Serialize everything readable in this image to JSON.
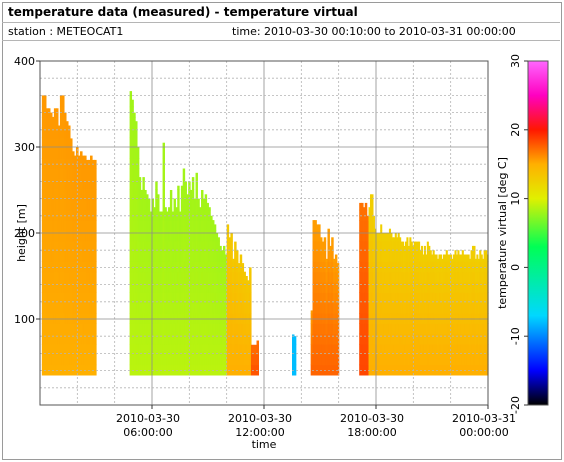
{
  "header": {
    "title": "temperature data (measured) - temperature virtual",
    "station_text": "station : METEOCAT1",
    "time_text": "time: 2010-03-30 00:10:00 to 2010-03-31 00:00:00"
  },
  "chart_data": {
    "type": "heatmap",
    "xlabel": "time",
    "ylabel": "height [m]",
    "colorbar_label": "temperature virtual [deg C]",
    "x_range_hours": [
      0,
      24
    ],
    "ylim": [
      0,
      400
    ],
    "x_ticks": [
      {
        "hour": 6,
        "label1": "2010-03-30",
        "label2": "06:00:00"
      },
      {
        "hour": 12,
        "label1": "2010-03-30",
        "label2": "12:00:00"
      },
      {
        "hour": 18,
        "label1": "2010-03-30",
        "label2": "18:00:00"
      },
      {
        "hour": 24,
        "label1": "2010-03-31",
        "label2": "00:00:00"
      }
    ],
    "y_ticks": [
      100,
      200,
      300,
      400
    ],
    "colorbar": {
      "range": [
        -20,
        30
      ],
      "ticks": [
        -20,
        -10,
        0,
        10,
        20,
        30
      ],
      "stops": [
        {
          "v": -20,
          "c": "#000000"
        },
        {
          "v": -15,
          "c": "#0000ff"
        },
        {
          "v": -7,
          "c": "#00d8ff"
        },
        {
          "v": 3,
          "c": "#00ff55"
        },
        {
          "v": 10,
          "c": "#e0f000"
        },
        {
          "v": 15,
          "c": "#ffb000"
        },
        {
          "v": 20,
          "c": "#ff1800"
        },
        {
          "v": 25,
          "c": "#ff00c0"
        },
        {
          "v": 30,
          "c": "#ff66ff"
        }
      ]
    },
    "grid": true,
    "bottom_height_m": 35,
    "segments": [
      {
        "t0": 0.1,
        "t1": 3.0,
        "temp_bottom": 15.0,
        "temp_top": 15.8,
        "tops": [
          360,
          360,
          345,
          345,
          340,
          335,
          345,
          345,
          325,
          360,
          360,
          340,
          330,
          325,
          310,
          295,
          290,
          300,
          290,
          295,
          290,
          290,
          285,
          285,
          290,
          285,
          285
        ]
      },
      {
        "t0": 4.8,
        "t1": 10.0,
        "temp_bottom": 8.8,
        "temp_top": 8.0,
        "tops": [
          365,
          355,
          340,
          330,
          300,
          265,
          250,
          265,
          250,
          245,
          240,
          225,
          240,
          230,
          260,
          245,
          225,
          225,
          305,
          230,
          225,
          230,
          250,
          225,
          240,
          230,
          255,
          225,
          255,
          275,
          260,
          245,
          260,
          250,
          265,
          240,
          270,
          240,
          230,
          250,
          240,
          245,
          235,
          230,
          220,
          215,
          210,
          200,
          195,
          185,
          180,
          185,
          175
        ]
      },
      {
        "t0": 10.0,
        "t1": 11.3,
        "temp_bottom": 15.0,
        "temp_top": 13.0,
        "tops": [
          210,
          195,
          200,
          170,
          190,
          180,
          165,
          175,
          165,
          155,
          150,
          145,
          160
        ]
      },
      {
        "t0": 11.3,
        "t1": 11.7,
        "temp_bottom": 18.0,
        "temp_top": 17.0,
        "tops": [
          70,
          70,
          70,
          75
        ]
      },
      {
        "t0": 13.5,
        "t1": 13.7,
        "temp_bottom": -8.0,
        "temp_top": -8.0,
        "tops": [
          82,
          80
        ]
      },
      {
        "t0": 14.5,
        "t1": 16.0,
        "temp_bottom": 17.5,
        "temp_top": 15.5,
        "tops": [
          110,
          215,
          215,
          210,
          210,
          195,
          190,
          195,
          170,
          205,
          185,
          195,
          170,
          175,
          165
        ]
      },
      {
        "t0": 17.1,
        "t1": 17.6,
        "temp_bottom": 18.5,
        "temp_top": 17.0,
        "tops": [
          235,
          235,
          230,
          235,
          220
        ]
      },
      {
        "t0": 17.6,
        "t1": 24.0,
        "temp_bottom": 15.0,
        "temp_top": 12.5,
        "tops": [
          230,
          245,
          245,
          220,
          205,
          200,
          200,
          200,
          210,
          200,
          200,
          200,
          200,
          200,
          205,
          200,
          195,
          195,
          200,
          195,
          200,
          195,
          190,
          190,
          185,
          190,
          195,
          185,
          195,
          190,
          185,
          190,
          190,
          190,
          190,
          180,
          185,
          175,
          185,
          175,
          190,
          185,
          180,
          175,
          180,
          175,
          175,
          170,
          175,
          175,
          170,
          175,
          175,
          180,
          175,
          175,
          175,
          170,
          175,
          180,
          175,
          180,
          175,
          175,
          180,
          175,
          175,
          175,
          175,
          170,
          180,
          185,
          185,
          170,
          175,
          170,
          180,
          175,
          170,
          180,
          180,
          175
        ]
      }
    ]
  }
}
